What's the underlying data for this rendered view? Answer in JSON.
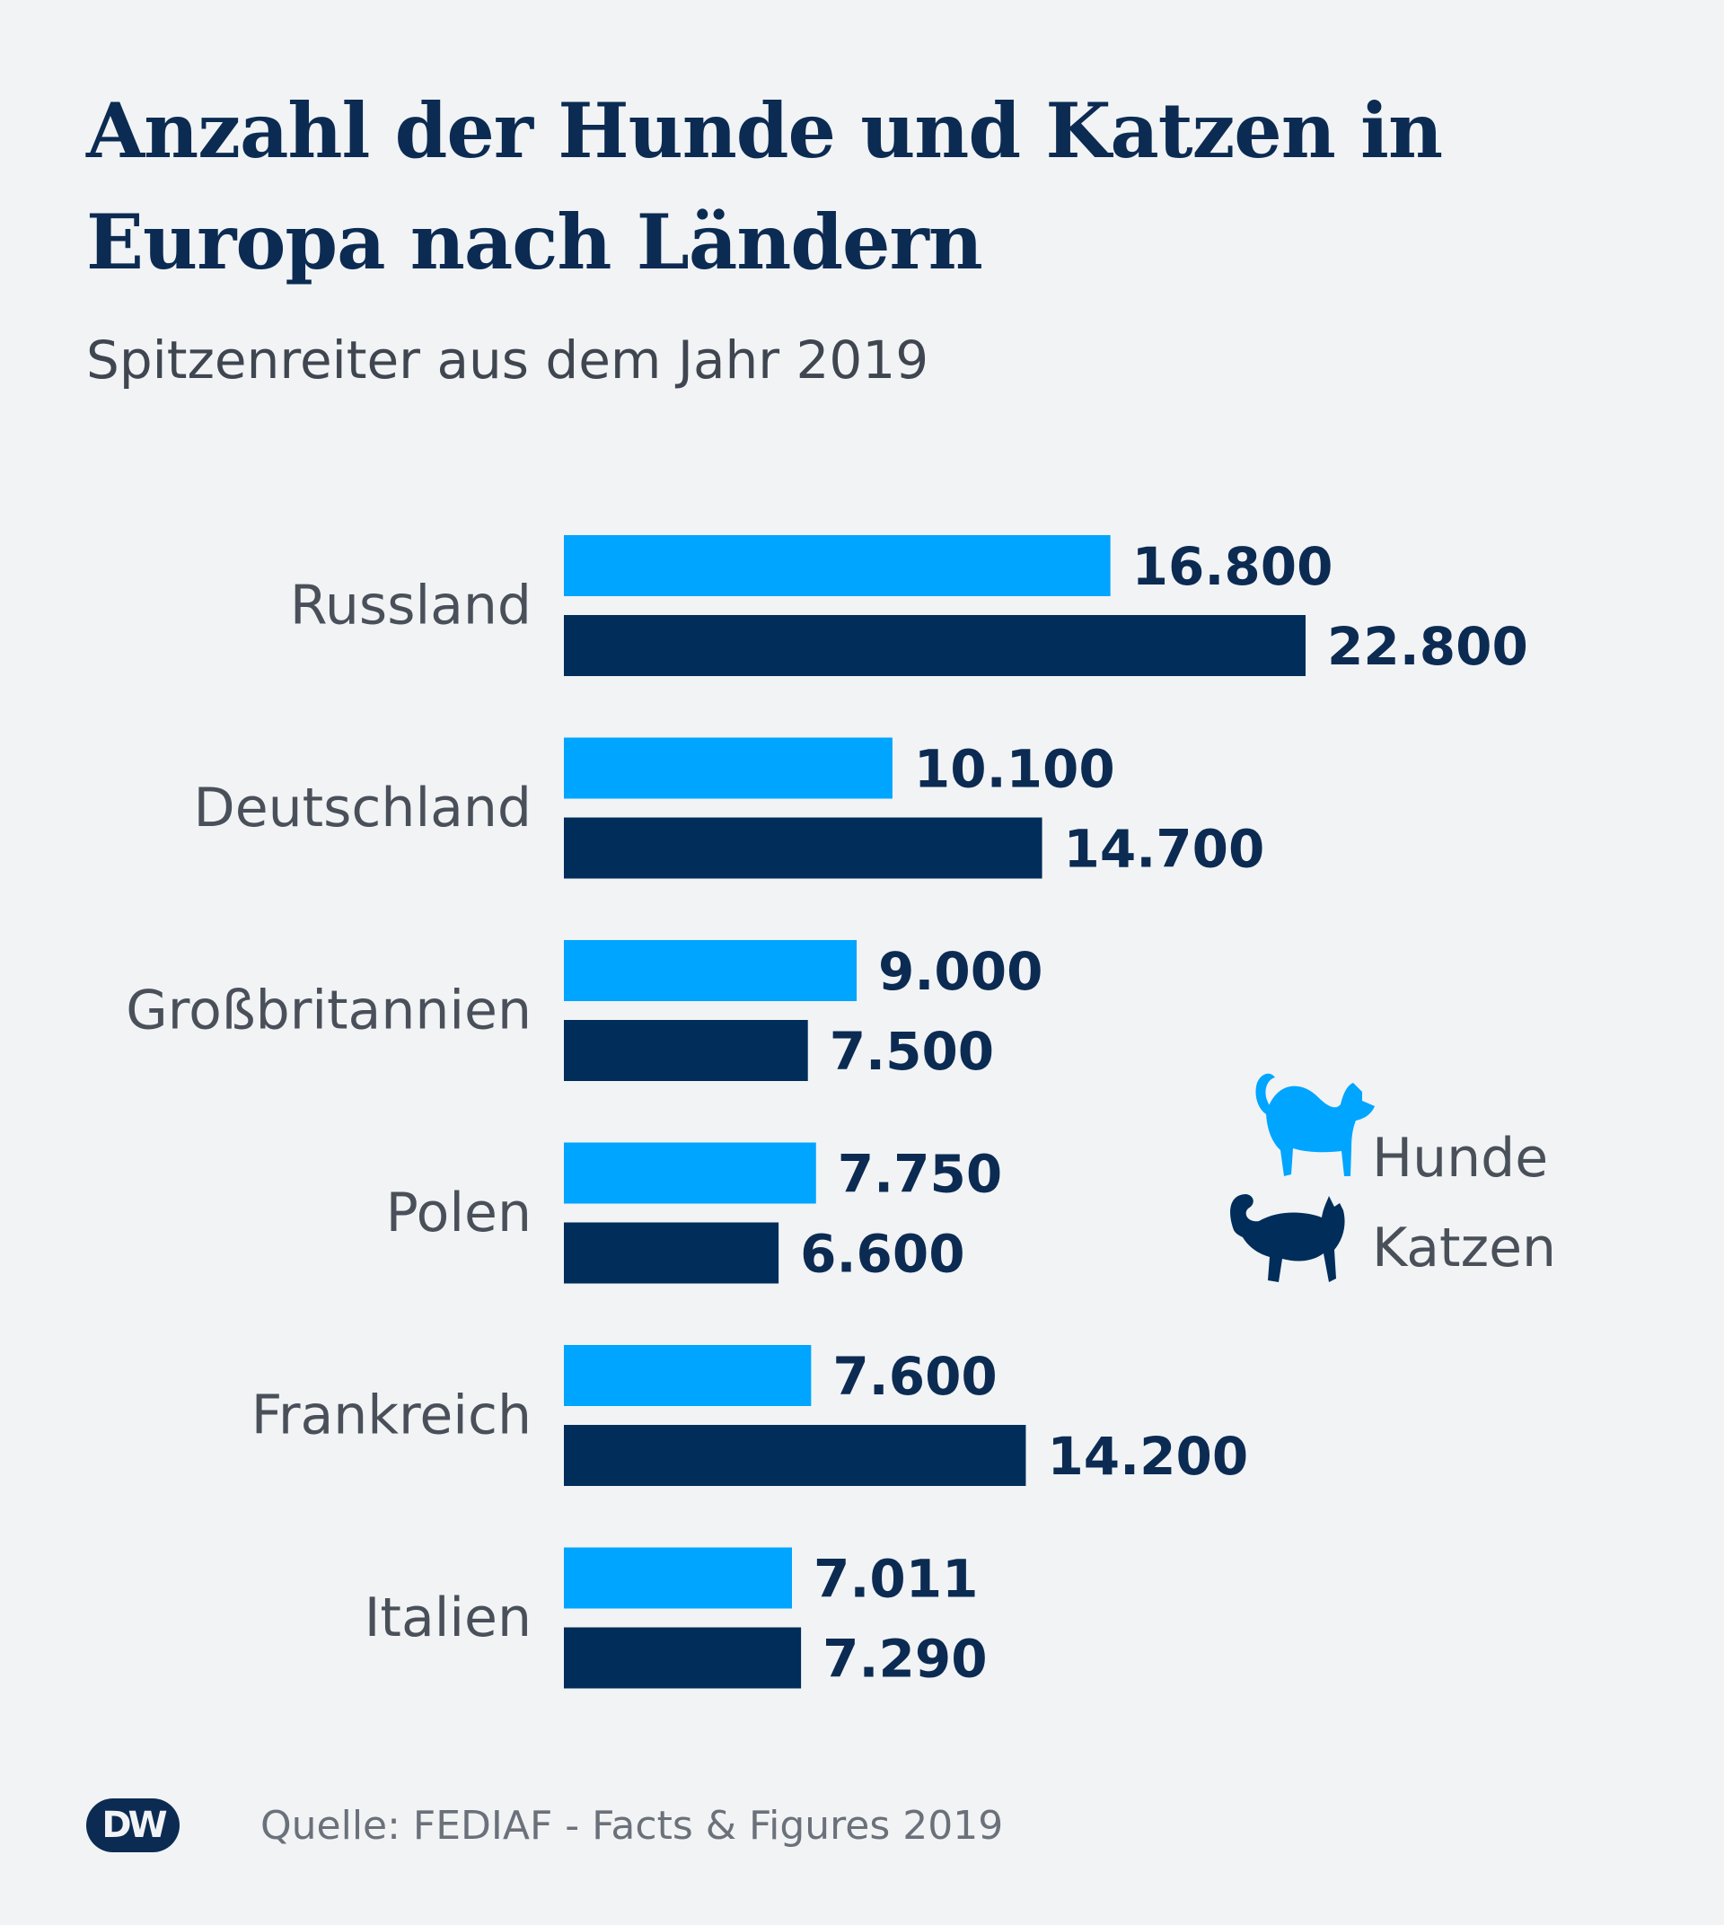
{
  "title": "Anzahl der Hunde und Katzen in Europa nach Ländern",
  "subtitle": "Spitzenreiter aus dem Jahr 2019",
  "legend": {
    "dogs_label": "Hunde",
    "cats_label": "Katzen",
    "dogs_icon": "dog-icon",
    "cats_icon": "cat-icon"
  },
  "source": "Quelle: FEDIAF - Facts & Figures 2019",
  "logo": "DW",
  "colors": {
    "dogs": "#00a5ff",
    "cats": "#002d5a",
    "background": "#f1f3f5"
  },
  "chart_data": {
    "type": "bar",
    "orientation": "horizontal",
    "title": "Anzahl der Hunde und Katzen in Europa nach Ländern",
    "subtitle": "Spitzenreiter aus dem Jahr 2019",
    "categories": [
      "Russland",
      "Deutschland",
      "Großbritannien",
      "Polen",
      "Frankreich",
      "Italien"
    ],
    "series": [
      {
        "name": "Hunde",
        "values": [
          16800,
          10100,
          9000,
          7750,
          7600,
          7011
        ],
        "labels": [
          "16.800",
          "10.100",
          "9.000",
          "7.750",
          "7.600",
          "7.011"
        ]
      },
      {
        "name": "Katzen",
        "values": [
          22800,
          14700,
          7500,
          6600,
          14200,
          7290
        ],
        "labels": [
          "22.800",
          "14.700",
          "7.500",
          "6.600",
          "14.200",
          "7.290"
        ]
      }
    ],
    "xlim": [
      0,
      22800
    ],
    "grid": false,
    "legend_position": "right"
  }
}
